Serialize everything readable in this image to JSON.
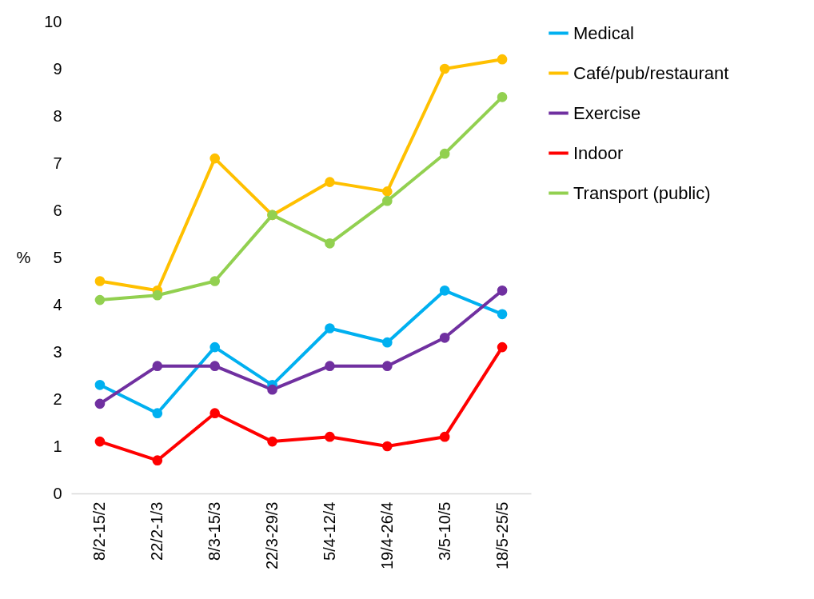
{
  "chart_data": {
    "type": "line",
    "ylabel": "%",
    "categories": [
      "8/2-15/2",
      "22/2-1/3",
      "8/3-15/3",
      "22/3-29/3",
      "5/4-12/4",
      "19/4-26/4",
      "3/5-10/5",
      "18/5-25/5"
    ],
    "series": [
      {
        "name": "Medical",
        "color": "#00b0f0",
        "values": [
          2.3,
          1.7,
          3.1,
          2.3,
          3.5,
          3.2,
          4.3,
          3.8
        ]
      },
      {
        "name": "Café/pub/restaurant",
        "color": "#ffc000",
        "values": [
          4.5,
          4.3,
          7.1,
          5.9,
          6.6,
          6.4,
          9.0,
          9.2
        ]
      },
      {
        "name": "Exercise",
        "color": "#7030a0",
        "values": [
          1.9,
          2.7,
          2.7,
          2.2,
          2.7,
          2.7,
          3.3,
          4.3
        ]
      },
      {
        "name": "Indoor",
        "color": "#ff0000",
        "values": [
          1.1,
          0.7,
          1.7,
          1.1,
          1.2,
          1.0,
          1.2,
          3.1
        ]
      },
      {
        "name": "Transport (public)",
        "color": "#92d050",
        "values": [
          4.1,
          4.2,
          4.5,
          5.9,
          5.3,
          6.2,
          7.2,
          8.4
        ]
      }
    ],
    "ylim": [
      0,
      10
    ],
    "yticks": [
      0,
      1,
      2,
      3,
      4,
      5,
      6,
      7,
      8,
      9,
      10
    ],
    "grid": false,
    "legend": "right",
    "marker": "circle",
    "line_style": "solid"
  }
}
